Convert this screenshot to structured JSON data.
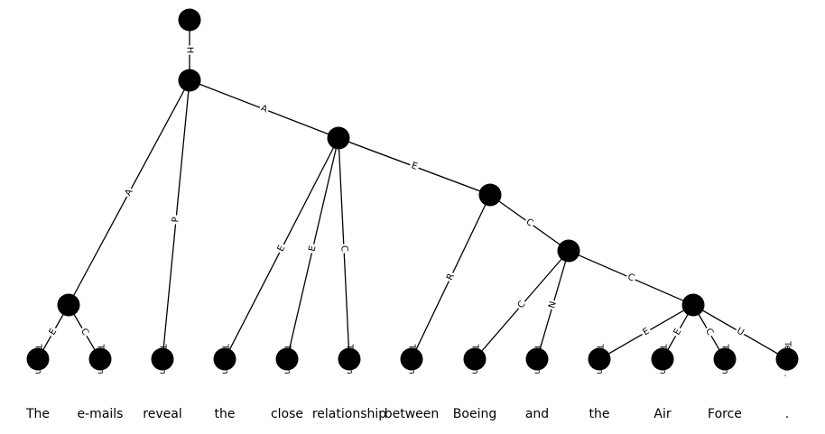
{
  "diagram": {
    "nodes": [
      {
        "id": "n0"
      },
      {
        "id": "n1"
      },
      {
        "id": "n2"
      },
      {
        "id": "n3"
      },
      {
        "id": "n4"
      },
      {
        "id": "n5"
      },
      {
        "id": "n6"
      },
      {
        "id": "t0"
      },
      {
        "id": "t1"
      },
      {
        "id": "t2"
      },
      {
        "id": "t3"
      },
      {
        "id": "t4"
      },
      {
        "id": "t5"
      },
      {
        "id": "t6"
      },
      {
        "id": "t7"
      },
      {
        "id": "t8"
      },
      {
        "id": "t9"
      },
      {
        "id": "t10"
      },
      {
        "id": "t11"
      },
      {
        "id": "t12"
      }
    ],
    "edges": [
      {
        "from": "n0",
        "to": "n1",
        "label": "H"
      },
      {
        "from": "n1",
        "to": "n2",
        "label": "A"
      },
      {
        "from": "n1",
        "to": "n3",
        "label": "A"
      },
      {
        "from": "n1",
        "to": "t2",
        "label": "P"
      },
      {
        "from": "n2",
        "to": "t0",
        "label": "E"
      },
      {
        "from": "n2",
        "to": "t1",
        "label": "C"
      },
      {
        "from": "n3",
        "to": "t3",
        "label": "E"
      },
      {
        "from": "n3",
        "to": "t4",
        "label": "E"
      },
      {
        "from": "n3",
        "to": "t5",
        "label": "C"
      },
      {
        "from": "n3",
        "to": "n4",
        "label": "E"
      },
      {
        "from": "n4",
        "to": "t6",
        "label": "R"
      },
      {
        "from": "n4",
        "to": "n5",
        "label": "C"
      },
      {
        "from": "n5",
        "to": "t7",
        "label": "C"
      },
      {
        "from": "n5",
        "to": "t8",
        "label": "N"
      },
      {
        "from": "n5",
        "to": "n6",
        "label": "C"
      },
      {
        "from": "n6",
        "to": "t9",
        "label": "E"
      },
      {
        "from": "n6",
        "to": "t10",
        "label": "E"
      },
      {
        "from": "n6",
        "to": "t11",
        "label": "C"
      },
      {
        "from": "n6",
        "to": "t12",
        "label": "U"
      }
    ],
    "terminal_label": "Termin",
    "words": [
      "The",
      "e-mails",
      "reveal",
      "the",
      "close",
      "relationship",
      "between",
      "Boeing",
      "and",
      "the",
      "Air",
      "Force",
      "."
    ]
  }
}
